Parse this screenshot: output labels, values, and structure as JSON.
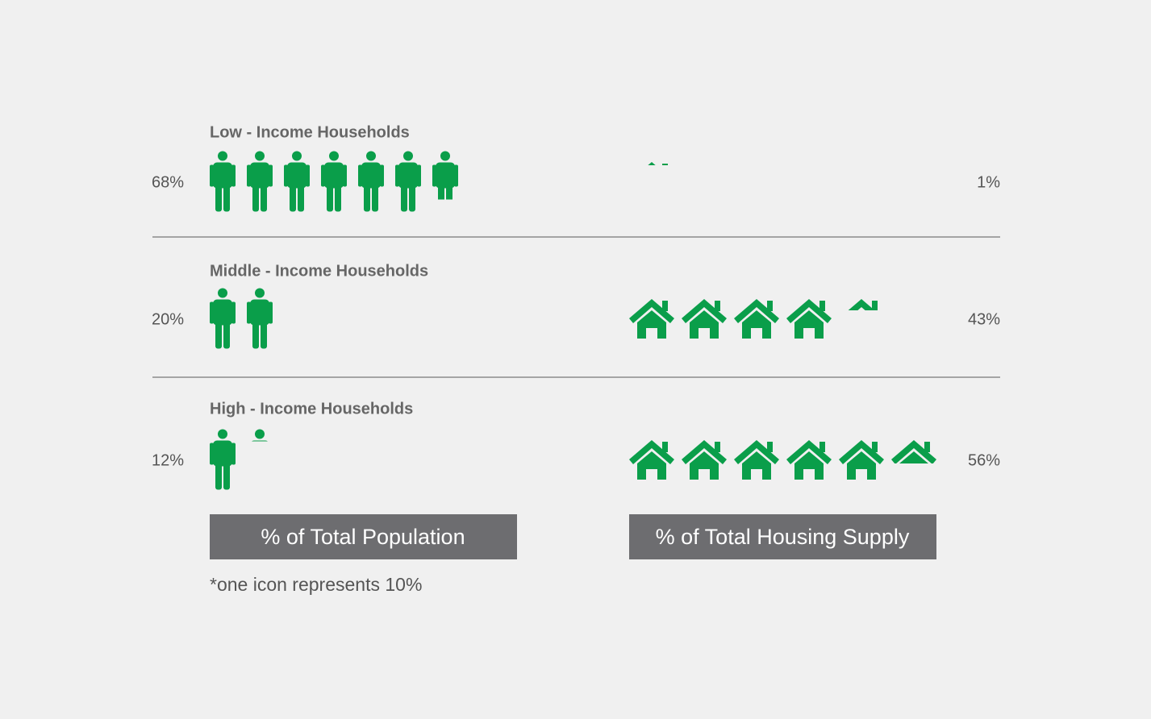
{
  "chart_data": {
    "type": "pictogram",
    "categories": [
      "Low - Income Households",
      "Middle - Income Households",
      "High - Income Households"
    ],
    "series": [
      {
        "name": "% of Total Population",
        "color": "#0a9e4a",
        "values": [
          68,
          20,
          12
        ],
        "value_labels": [
          "68%",
          "20%",
          "12%"
        ]
      },
      {
        "name": "% of Total Housing Supply",
        "color": "#0a9e4a",
        "values": [
          1,
          43,
          56
        ],
        "value_labels": [
          "1%",
          "43%",
          "56%"
        ]
      }
    ],
    "icon_value": 10,
    "note": "*one icon represents 10%"
  }
}
